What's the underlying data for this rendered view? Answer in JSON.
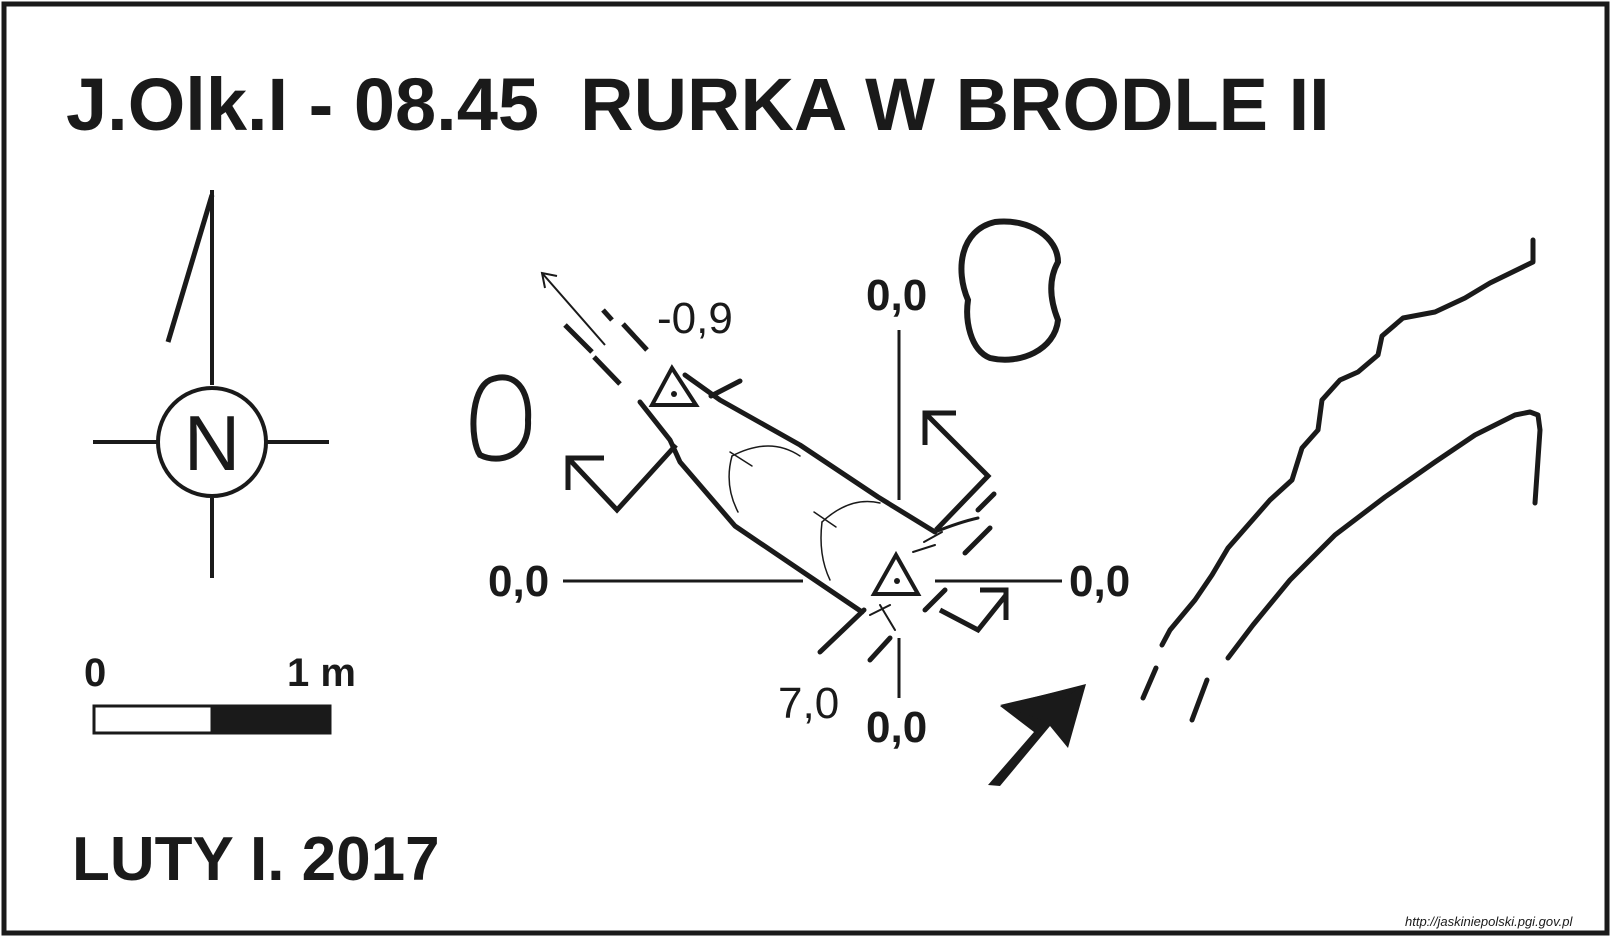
{
  "title": "J.Olk.I - 08.45  RURKA W BRODLE II",
  "date": "LUTY I. 2017",
  "compass": {
    "letter": "N",
    "icon": "north-arrow-compass-icon"
  },
  "scale_bar": {
    "start_label": "0",
    "end_label": "1 m"
  },
  "depth_labels": {
    "left_entrance": "-0,9",
    "right_entrance": "7,0"
  },
  "section_labels": {
    "top": "0,0",
    "left": "0,0",
    "right": "0,0",
    "bottom": "0,0"
  },
  "source_url": "http://jaskiniepolski.pgi.gov.pl",
  "colors": {
    "ink": "#1a1a1a",
    "background": "#ffffff"
  }
}
